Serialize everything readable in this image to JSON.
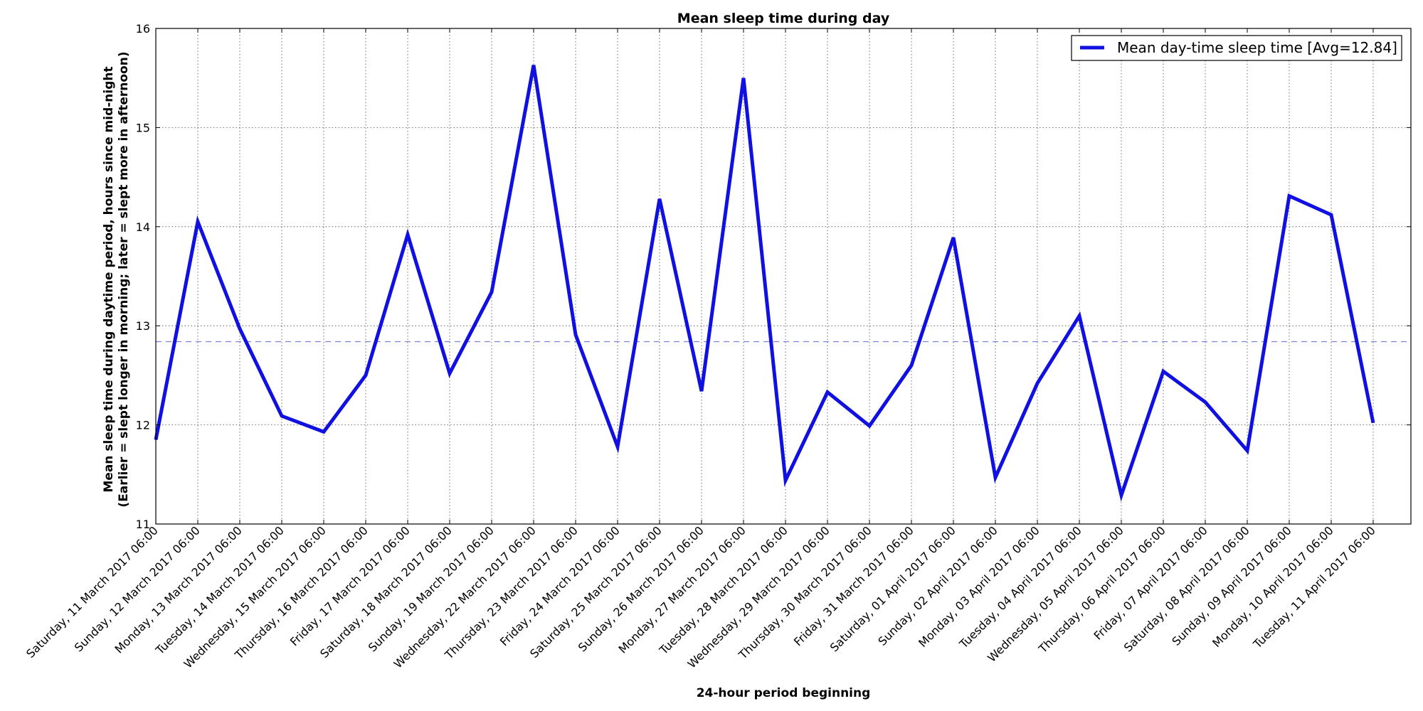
{
  "chart_data": {
    "type": "line",
    "title": "Mean sleep time during day",
    "xlabel": "24-hour period beginning",
    "ylabel_line1": "Mean sleep time during daytime period, hours since mid-night",
    "ylabel_line2": "(Earlier = slept longer in morning; later = slept more in afternoon)",
    "ylim": [
      11,
      16
    ],
    "yticks": [
      "11",
      "12",
      "13",
      "14",
      "15",
      "16"
    ],
    "grid": true,
    "legend_position": "top-right",
    "average": 12.84,
    "categories": [
      "Saturday, 11 March 2017 06:00",
      "Sunday, 12 March 2017 06:00",
      "Monday, 13 March 2017 06:00",
      "Tuesday, 14 March 2017 06:00",
      "Wednesday, 15 March 2017 06:00",
      "Thursday, 16 March 2017 06:00",
      "Friday, 17 March 2017 06:00",
      "Saturday, 18 March 2017 06:00",
      "Sunday, 19 March 2017 06:00",
      "Wednesday, 22 March 2017 06:00",
      "Thursday, 23 March 2017 06:00",
      "Friday, 24 March 2017 06:00",
      "Saturday, 25 March 2017 06:00",
      "Sunday, 26 March 2017 06:00",
      "Monday, 27 March 2017 06:00",
      "Tuesday, 28 March 2017 06:00",
      "Wednesday, 29 March 2017 06:00",
      "Thursday, 30 March 2017 06:00",
      "Friday, 31 March 2017 06:00",
      "Saturday, 01 April 2017 06:00",
      "Sunday, 02 April 2017 06:00",
      "Monday, 03 April 2017 06:00",
      "Tuesday, 04 April 2017 06:00",
      "Wednesday, 05 April 2017 06:00",
      "Thursday, 06 April 2017 06:00",
      "Friday, 07 April 2017 06:00",
      "Saturday, 08 April 2017 06:00",
      "Sunday, 09 April 2017 06:00",
      "Monday, 10 April 2017 06:00",
      "Tuesday, 11 April 2017 06:00"
    ],
    "series": [
      {
        "name": "Mean day-time sleep time [Avg=12.84]",
        "color": "#1010e0",
        "values": [
          11.85,
          14.05,
          12.97,
          12.09,
          11.93,
          12.5,
          13.92,
          12.52,
          13.34,
          15.63,
          12.91,
          11.78,
          14.28,
          12.34,
          15.5,
          11.44,
          12.33,
          11.99,
          12.6,
          13.89,
          11.47,
          12.42,
          13.1,
          11.29,
          12.54,
          12.23,
          11.74,
          14.31,
          14.12,
          12.02
        ]
      }
    ],
    "average_line_color": "#8080e0"
  }
}
